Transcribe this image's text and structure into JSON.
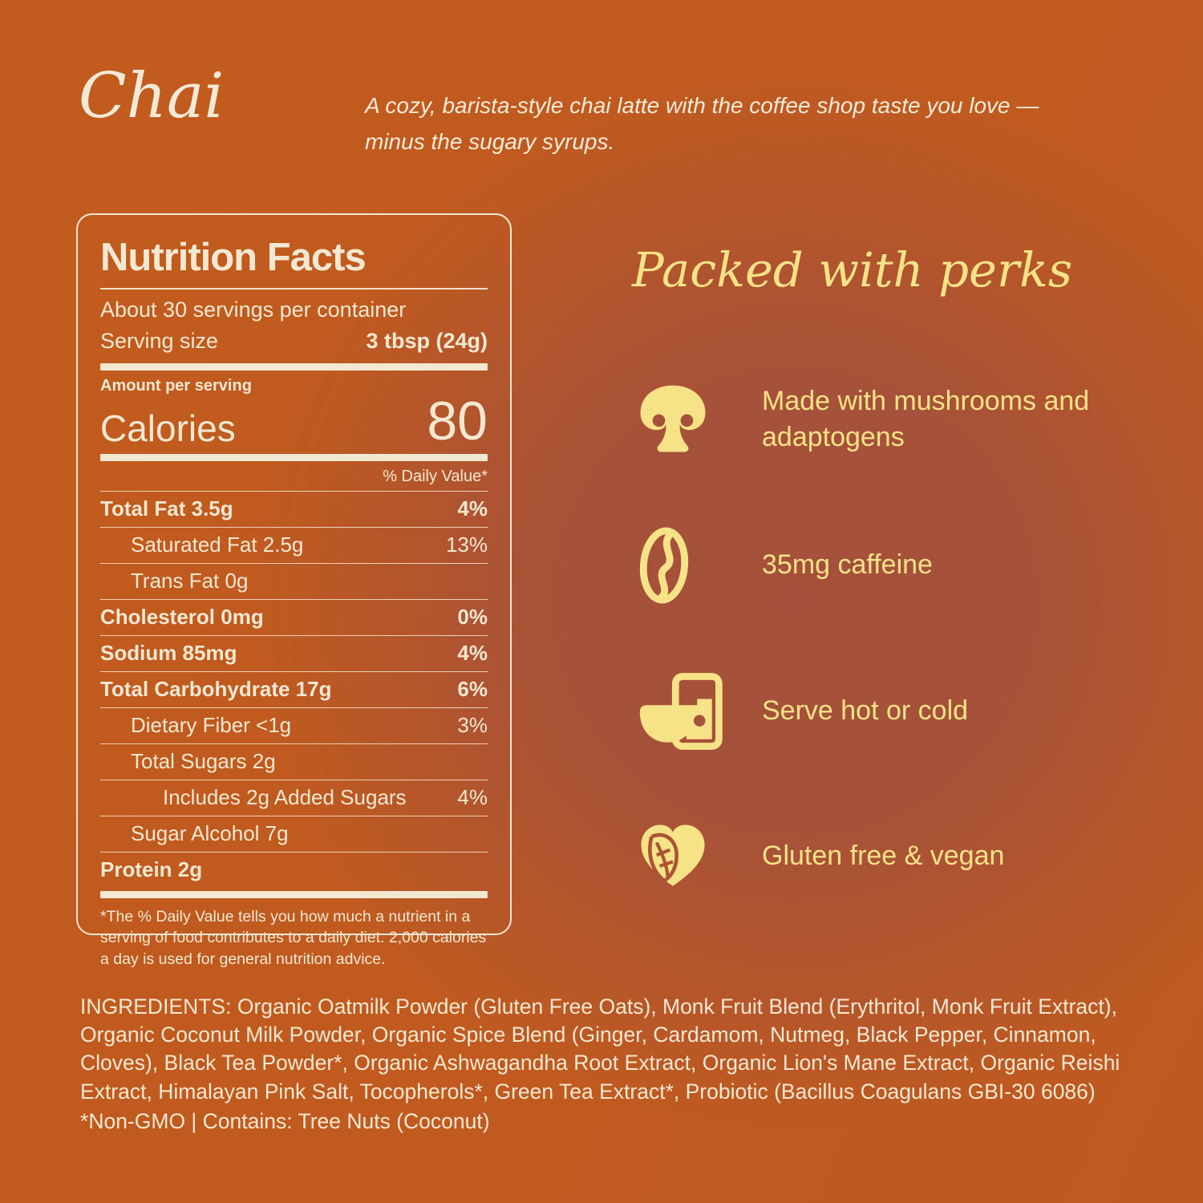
{
  "page": {
    "title": "Chai",
    "tagline": "A cozy, barista-style chai latte with the coffee shop taste you love —\nminus the sugary syrups."
  },
  "colors": {
    "background_orange": "#c15b1e",
    "background_blob": "#a3503d",
    "cream": "#f3e8d2",
    "yellow": "#f7e387"
  },
  "nutrition": {
    "title": "Nutrition Facts",
    "servings_line": "About 30 servings per container",
    "serving_size_label": "Serving size",
    "serving_size_value": "3 tbsp (24g)",
    "amount_label": "Amount per serving",
    "calories_label": "Calories",
    "calories_value": "80",
    "daily_value_header": "% Daily Value*",
    "rows": [
      {
        "label": "Total Fat 3.5g",
        "value": "4%",
        "bold": true,
        "indent": 0
      },
      {
        "label": "Saturated Fat 2.5g",
        "value": "13%",
        "bold": false,
        "indent": 1
      },
      {
        "label": "Trans Fat 0g",
        "value": "",
        "bold": false,
        "indent": 1
      },
      {
        "label": "Cholesterol 0mg",
        "value": "0%",
        "bold": true,
        "indent": 0
      },
      {
        "label": "Sodium 85mg",
        "value": "4%",
        "bold": true,
        "indent": 0
      },
      {
        "label": "Total Carbohydrate 17g",
        "value": "6%",
        "bold": true,
        "indent": 0
      },
      {
        "label": "Dietary Fiber <1g",
        "value": "3%",
        "bold": false,
        "indent": 1
      },
      {
        "label": "Total Sugars 2g",
        "value": "",
        "bold": false,
        "indent": 1
      },
      {
        "label": "Includes 2g Added Sugars",
        "value": "4%",
        "bold": false,
        "indent": 2
      },
      {
        "label": "Sugar Alcohol 7g",
        "value": "",
        "bold": false,
        "indent": 1
      },
      {
        "label": "Protein 2g",
        "value": "",
        "bold": true,
        "indent": 0
      }
    ],
    "footnote": "*The % Daily Value tells you how much a nutrient in a serving of food contributes to a daily diet. 2,000 calories a day is used for general nutrition advice."
  },
  "perks": {
    "heading": "Packed with perks",
    "items": [
      {
        "icon": "mushroom-icon",
        "text": "Made with mushrooms and adaptogens"
      },
      {
        "icon": "coffee-bean-icon",
        "text": "35mg caffeine"
      },
      {
        "icon": "cup-glass-icon",
        "text": "Serve hot or cold"
      },
      {
        "icon": "leaf-heart-icon",
        "text": "Gluten free & vegan"
      }
    ]
  },
  "ingredients": "INGREDIENTS: Organic Oatmilk Powder (Gluten Free Oats), Monk Fruit Blend (Erythritol, Monk Fruit Extract), Organic Coconut Milk Powder, Organic Spice Blend (Ginger, Cardamom, Nutmeg, Black Pepper, Cinnamon, Cloves), Black Tea Powder*, Organic Ashwagandha Root Extract, Organic Lion's Mane Extract, Organic Reishi Extract, Himalayan Pink Salt, Tocopherols*, Green Tea Extract*, Probiotic (Bacillus Coagulans GBI-30 6086)",
  "allergen_note": "*Non-GMO | Contains: Tree Nuts (Coconut)"
}
